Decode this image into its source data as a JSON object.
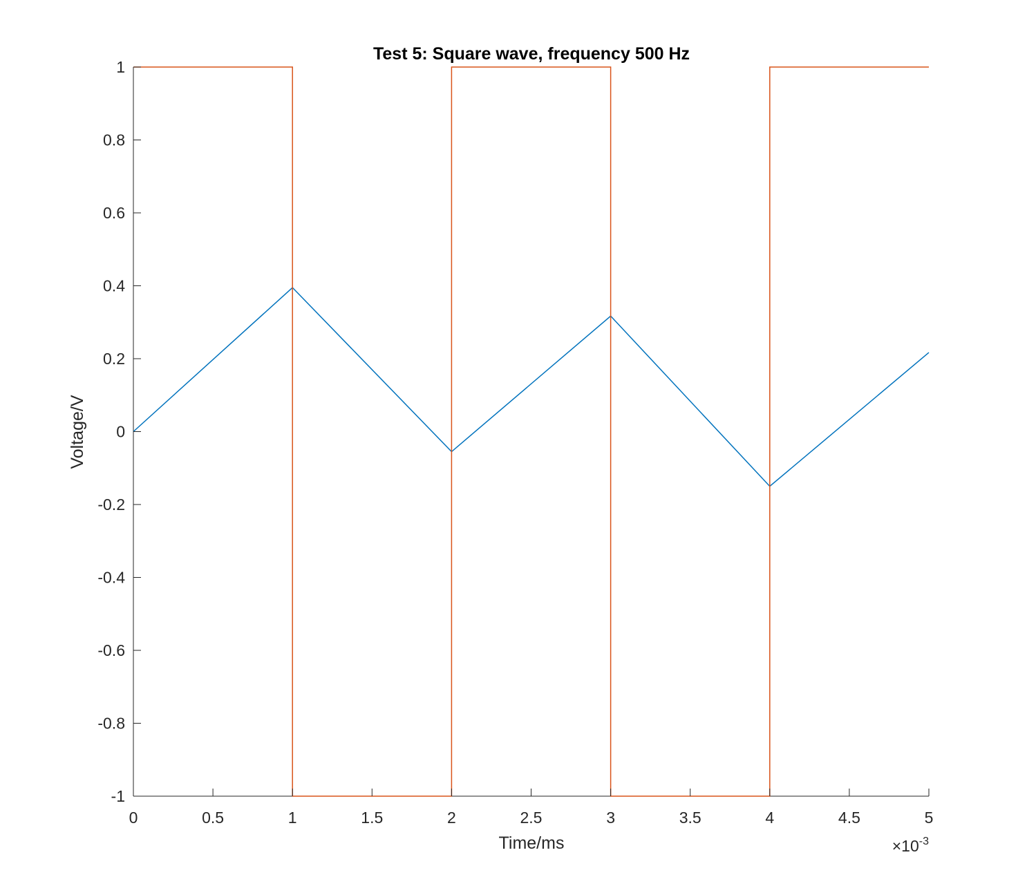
{
  "chart_data": {
    "type": "line",
    "title": "Test 5: Square wave, frequency 500 Hz",
    "xlabel": "Time/ms",
    "ylabel": "Voltage/V",
    "x_exponent_prefix": "×10",
    "x_exponent_power": "-3",
    "xlim": [
      0,
      0.005
    ],
    "ylim": [
      -1,
      1
    ],
    "xticks": [
      0,
      0.0005,
      0.001,
      0.0015,
      0.002,
      0.0025,
      0.003,
      0.0035,
      0.004,
      0.0045,
      0.005
    ],
    "xtick_labels": [
      "0",
      "0.5",
      "1",
      "1.5",
      "2",
      "2.5",
      "3",
      "3.5",
      "4",
      "4.5",
      "5"
    ],
    "yticks": [
      -1,
      -0.8,
      -0.6,
      -0.4,
      -0.2,
      0,
      0.2,
      0.4,
      0.6,
      0.8,
      1
    ],
    "ytick_labels": [
      "-1",
      "-0.8",
      "-0.6",
      "-0.4",
      "-0.2",
      "0",
      "0.2",
      "0.4",
      "0.6",
      "0.8",
      "1"
    ],
    "grid": false,
    "series": [
      {
        "color": "#0072BD",
        "x": [
          0,
          0.001,
          0.002,
          0.003,
          0.004,
          0.005
        ],
        "y": [
          0,
          0.395,
          -0.055,
          0.317,
          -0.15,
          0.217
        ]
      },
      {
        "color": "#D95319",
        "x": [
          0,
          0.001,
          0.001,
          0.002,
          0.002,
          0.003,
          0.003,
          0.004,
          0.004,
          0.005
        ],
        "y": [
          1,
          1,
          -1,
          -1,
          1,
          1,
          -1,
          -1,
          1,
          1
        ]
      }
    ]
  }
}
